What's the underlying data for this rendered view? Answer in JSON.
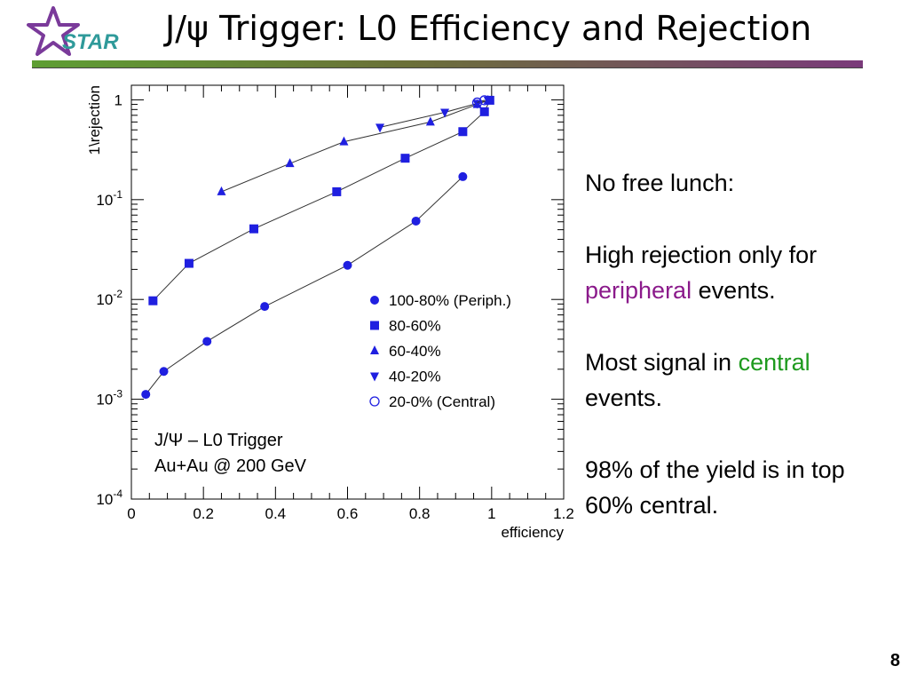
{
  "slide": {
    "logo_text": "STAR",
    "title": "J/ψ Trigger: L0 Efficiency and Rejection",
    "page_number": "8"
  },
  "colors": {
    "marker": "#1f1fe0",
    "line": "#333333",
    "title_bar_start": "#5e9e33",
    "title_bar_end": "#7a3a7a",
    "peripheral": "#8b1a8b",
    "central": "#1e9a1e"
  },
  "notes": {
    "p1": "No free lunch:",
    "p2_pre": "High rejection only for",
    "p2_hl": "peripheral",
    "p2_post": " events.",
    "p3_pre": "Most signal in ",
    "p3_hl": "central",
    "p3_post": "events.",
    "p4": "98% of the yield is in top 60% central."
  },
  "chart_data": {
    "type": "scatter",
    "xlabel": "efficiency",
    "ylabel": "1\\rejection",
    "xlim": [
      0,
      1.2
    ],
    "ylim": [
      0.0001,
      1.4
    ],
    "yscale": "log",
    "grid": false,
    "legend_position": "center-right",
    "x_ticks": [
      "0",
      "0.2",
      "0.4",
      "0.6",
      "0.8",
      "1",
      "1.2"
    ],
    "y_ticks": [
      {
        "base": "1",
        "exp": ""
      },
      {
        "base": "10",
        "exp": "-1"
      },
      {
        "base": "10",
        "exp": "-2"
      },
      {
        "base": "10",
        "exp": "-3"
      },
      {
        "base": "10",
        "exp": "-4"
      }
    ],
    "annotation": [
      "J/Ψ – L0 Trigger",
      "Au+Au @ 200 GeV"
    ],
    "series": [
      {
        "name": "100-80% (Periph.)",
        "marker": "circle",
        "x": [
          0.04,
          0.09,
          0.21,
          0.37,
          0.6,
          0.79,
          0.92
        ],
        "y": [
          0.00112,
          0.0019,
          0.0038,
          0.0085,
          0.022,
          0.061,
          0.17
        ]
      },
      {
        "name": "80-60%",
        "marker": "square",
        "x": [
          0.06,
          0.16,
          0.34,
          0.57,
          0.76,
          0.92,
          0.98,
          0.995
        ],
        "y": [
          0.0097,
          0.023,
          0.051,
          0.12,
          0.26,
          0.48,
          0.76,
          0.99
        ]
      },
      {
        "name": "60-40%",
        "marker": "triangle-up",
        "x": [
          0.25,
          0.44,
          0.59,
          0.83,
          0.96,
          0.99
        ],
        "y": [
          0.12,
          0.23,
          0.38,
          0.6,
          0.9,
          0.99
        ]
      },
      {
        "name": "40-20%",
        "marker": "triangle-down",
        "x": [
          0.69,
          0.87,
          0.96,
          0.99
        ],
        "y": [
          0.53,
          0.75,
          0.92,
          0.99
        ]
      },
      {
        "name": "20-0% (Central)",
        "marker": "circle-open",
        "x": [
          0.96,
          0.98
        ],
        "y": [
          0.94,
          0.99
        ]
      }
    ]
  }
}
